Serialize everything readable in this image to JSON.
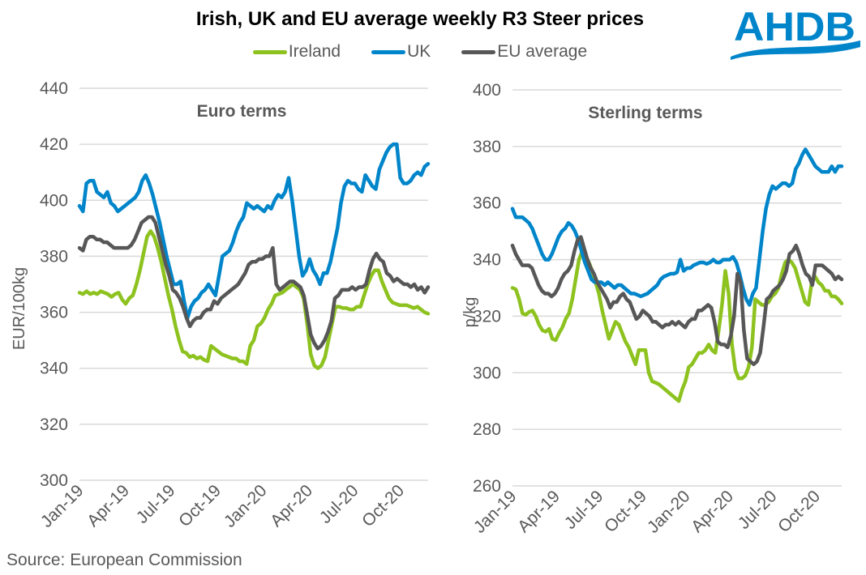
{
  "title": "Irish, UK and EU average weekly R3 Steer prices",
  "source": "Source: European Commission",
  "logo": {
    "text": "AHDB",
    "color": "#0085CA"
  },
  "legend": [
    {
      "name": "Ireland",
      "color": "#8DC21F"
    },
    {
      "name": "UK",
      "color": "#0085CA"
    },
    {
      "name": "EU average",
      "color": "#575757"
    }
  ],
  "chart_data": [
    {
      "type": "line",
      "title": "Euro terms",
      "xlabel": "",
      "ylabel": "EUR/100kg",
      "ylim": [
        300,
        440
      ],
      "yticks": [
        300,
        320,
        340,
        360,
        380,
        400,
        420,
        440
      ],
      "xticks": [
        "Jan-19",
        "Apr-19",
        "Jul-19",
        "Oct-19",
        "Jan-20",
        "Apr-20",
        "Jul-20",
        "Oct-20"
      ],
      "x_unit": "week index from Jan-19 (13 weeks per quarter)",
      "grid": true,
      "legend_position": "top",
      "series": [
        {
          "name": "Ireland",
          "color": "#8DC21F",
          "values": [
            367,
            366.5,
            367.5,
            366.5,
            367,
            366.5,
            367.5,
            367,
            366.5,
            365.5,
            366.5,
            367,
            364.5,
            363,
            365,
            366,
            370,
            375,
            381,
            387,
            389,
            387,
            383,
            378,
            372,
            366,
            361,
            355,
            350,
            346,
            345.5,
            344,
            344.5,
            343.5,
            344,
            343,
            342.5,
            348,
            347,
            346,
            345,
            344.5,
            344,
            343.5,
            343.5,
            342.5,
            342.5,
            341.5,
            348,
            350,
            355,
            356,
            358,
            361,
            363,
            366,
            366.5,
            367,
            368,
            369,
            370,
            369,
            368,
            365,
            356,
            345,
            341,
            340,
            341,
            344,
            350,
            356,
            362,
            362,
            361.5,
            361.5,
            361,
            361,
            362,
            362,
            366,
            370,
            373,
            375,
            375,
            371,
            368,
            365,
            363.5,
            363,
            362.5,
            362.5,
            362.5,
            362,
            361.5,
            362,
            361,
            360,
            359.5
          ]
        },
        {
          "name": "UK",
          "color": "#0085CA",
          "values": [
            398,
            396,
            406,
            407,
            407,
            403,
            402,
            401,
            403,
            399,
            398,
            396,
            397,
            398,
            399,
            400,
            401,
            403,
            407,
            409,
            406,
            402,
            397,
            392,
            386,
            380,
            375,
            370,
            370,
            371,
            364,
            358,
            362,
            364,
            365,
            367,
            368,
            370,
            368,
            366,
            373,
            380,
            381,
            382,
            385,
            389,
            392,
            394,
            399,
            398,
            397,
            398,
            397,
            396,
            398,
            397,
            400,
            402,
            401,
            403,
            408,
            400,
            390,
            380,
            373,
            375,
            379,
            375,
            373,
            370,
            374,
            374,
            378,
            384,
            390,
            399,
            405,
            407,
            406,
            406,
            404,
            403,
            409,
            407,
            405,
            404,
            411,
            414,
            417,
            419,
            420,
            420,
            408,
            406,
            406,
            407,
            409,
            410,
            409,
            412,
            413
          ]
        },
        {
          "name": "EU average",
          "color": "#575757",
          "values": [
            383,
            382,
            386,
            387,
            387,
            386,
            386,
            385,
            385,
            384,
            383,
            383,
            383,
            383,
            383,
            384,
            386,
            389,
            392,
            393,
            394,
            394,
            392,
            387,
            382,
            377,
            373,
            368,
            367,
            365,
            362,
            358,
            355,
            357,
            358,
            358,
            360,
            361,
            361,
            364,
            363,
            365,
            366,
            367,
            368,
            369,
            370,
            372,
            374,
            377,
            378,
            378,
            379,
            379,
            380,
            380,
            383,
            370,
            368,
            369,
            370,
            371,
            371,
            370,
            369,
            366,
            359,
            352,
            349,
            347,
            348,
            350,
            353,
            357,
            365,
            366,
            368,
            368,
            368,
            369,
            368,
            369,
            369,
            370,
            375,
            379,
            381,
            379,
            378,
            374,
            373,
            371,
            372,
            371,
            370,
            370,
            369,
            370,
            368,
            369,
            367,
            369
          ]
        }
      ]
    },
    {
      "type": "line",
      "title": "Sterling terms",
      "xlabel": "",
      "ylabel": "p/kg",
      "ylim": [
        260,
        400
      ],
      "yticks": [
        260,
        280,
        300,
        320,
        340,
        360,
        380,
        400
      ],
      "xticks": [
        "Jan-19",
        "Apr-19",
        "Jul-19",
        "Oct-19",
        "Jan-20",
        "Apr-20",
        "Jul-20",
        "Oct-20"
      ],
      "x_unit": "week index from Jan-19 (13 weeks per quarter)",
      "grid": true,
      "legend_position": "top",
      "series": [
        {
          "name": "Ireland",
          "color": "#8DC21F",
          "values": [
            330,
            329.5,
            326,
            321,
            320.5,
            321.5,
            322,
            320,
            317,
            315,
            314.5,
            315.5,
            312,
            311.5,
            314,
            316,
            319,
            321,
            326,
            333,
            340,
            343,
            341,
            339,
            336,
            332,
            328,
            322,
            317,
            312,
            315,
            318,
            317,
            314,
            311,
            309,
            306,
            303,
            308,
            308,
            308,
            300,
            297,
            296.5,
            296,
            295,
            294,
            293,
            292,
            291,
            290,
            294,
            297,
            302,
            303,
            305,
            307,
            307,
            308,
            310,
            308,
            307,
            315,
            324,
            336,
            328,
            310,
            301,
            298,
            298,
            299,
            302,
            309,
            326,
            325,
            324,
            324,
            325,
            327,
            328,
            330,
            335,
            339,
            340,
            339,
            337,
            333,
            329,
            325,
            324,
            332,
            334,
            332,
            331,
            329,
            329,
            327,
            327,
            326,
            324.5
          ]
        },
        {
          "name": "UK",
          "color": "#0085CA",
          "values": [
            358,
            355,
            355,
            355,
            354,
            353,
            351,
            348,
            345,
            342,
            340,
            340,
            342,
            345,
            348,
            350,
            351,
            353,
            352,
            350,
            347,
            343,
            339,
            336,
            333,
            332,
            332,
            332,
            331,
            332,
            331,
            330,
            331,
            331,
            330,
            329,
            328,
            328,
            327.5,
            327,
            327.5,
            328,
            329,
            330,
            331,
            333,
            334,
            334.5,
            335,
            335,
            335.5,
            340,
            336,
            337,
            337,
            338,
            338.5,
            339,
            339,
            338.5,
            339,
            340,
            339,
            339,
            340,
            340,
            340,
            341,
            339,
            335,
            330,
            326,
            324,
            328,
            330,
            340,
            350,
            358,
            363,
            366,
            365,
            366,
            367,
            367,
            366,
            367,
            372,
            374,
            377,
            379,
            377,
            375,
            373,
            372,
            371,
            371,
            371,
            373,
            371,
            373,
            373
          ]
        },
        {
          "name": "EU average",
          "color": "#575757",
          "values": [
            345,
            342,
            340,
            338,
            338,
            338,
            337,
            334,
            331,
            329,
            328,
            328,
            327,
            328,
            330,
            333,
            335,
            336,
            338,
            343,
            347,
            348,
            344,
            340,
            337,
            335,
            332,
            330,
            328,
            326,
            323,
            325,
            325,
            327,
            328,
            326,
            325,
            322,
            319,
            320,
            322,
            321,
            320,
            318,
            318,
            317,
            316,
            317,
            317,
            318,
            317,
            318,
            317,
            316,
            318,
            319,
            319,
            322,
            322,
            323,
            324,
            323,
            318,
            311,
            310,
            310,
            309,
            313,
            320,
            335,
            332,
            315,
            305,
            304,
            303,
            304,
            307,
            316,
            326,
            327,
            329,
            330,
            331,
            333,
            336,
            342,
            343,
            345,
            342,
            338,
            335,
            334,
            331,
            338,
            338,
            338,
            337,
            336,
            335,
            333,
            334,
            333
          ]
        }
      ]
    }
  ]
}
